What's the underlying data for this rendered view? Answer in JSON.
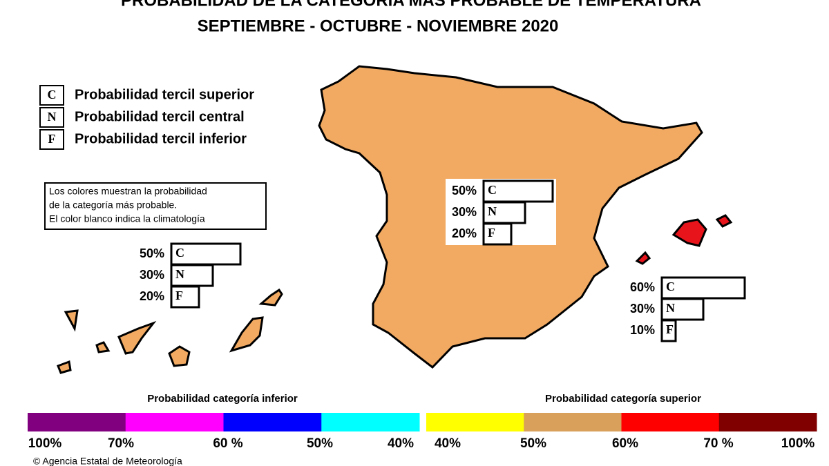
{
  "header": {
    "title": "PROBABILIDAD DE LA CATEGORÍA MÁS PROBABLE DE TEMPERATURA",
    "subtitle": "SEPTIEMBRE - OCTUBRE - NOVIEMBRE 2020"
  },
  "legend": [
    {
      "key": "C",
      "label": "Probabilidad  tercil superior"
    },
    {
      "key": "N",
      "label": "Probabilidad  tercil central"
    },
    {
      "key": "F",
      "label": "Probabilidad  tercil inferior"
    }
  ],
  "note": [
    "Los colores muestran la probabilidad",
    "de la categoría más probable.",
    "El color blanco indica la climatología"
  ],
  "regions": [
    {
      "bars": [
        {
          "key": "C",
          "value": 50,
          "label": "50%"
        },
        {
          "key": "N",
          "value": 30,
          "label": "30%"
        },
        {
          "key": "F",
          "value": 20,
          "label": "20%"
        }
      ]
    },
    {
      "bars": [
        {
          "key": "C",
          "value": 50,
          "label": "50%"
        },
        {
          "key": "N",
          "value": 30,
          "label": "30%"
        },
        {
          "key": "F",
          "value": 20,
          "label": "20%"
        }
      ]
    },
    {
      "bars": [
        {
          "key": "C",
          "value": 60,
          "label": "60%"
        },
        {
          "key": "N",
          "value": 30,
          "label": "30%"
        },
        {
          "key": "F",
          "value": 10,
          "label": "10%"
        }
      ]
    }
  ],
  "scale": {
    "lower": {
      "title": "Probabilidad categoría inferior",
      "colors": [
        "#800080",
        "#ff00ff",
        "#0000ff",
        "#00ffff"
      ],
      "ticks": [
        "100%",
        "70%",
        "60 %",
        "50%",
        "40%"
      ]
    },
    "upper": {
      "title": "Probabilidad categoría superior",
      "colors": [
        "#ffff00",
        "#d9a05b",
        "#ff0000",
        "#800000"
      ],
      "ticks": [
        "40%",
        "50%",
        "60%",
        "70 %",
        "100%"
      ]
    }
  },
  "footer": "© Agencia Estatal de Meteorología"
}
